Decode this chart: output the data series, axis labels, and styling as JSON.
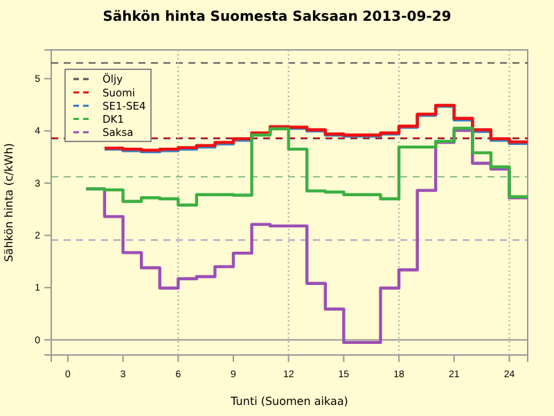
{
  "chart_data": {
    "type": "step",
    "title": "Sähkön hinta Suomesta Saksaan 2013-09-29",
    "xlabel": "Tunti (Suomen aikaa)",
    "ylabel": "Sähkön hinta (c/kWh)",
    "x": [
      1,
      2,
      3,
      4,
      5,
      6,
      7,
      8,
      9,
      10,
      11,
      12,
      13,
      14,
      15,
      16,
      17,
      18,
      19,
      20,
      21,
      22,
      23,
      24,
      25
    ],
    "xlim": [
      -0.9,
      25
    ],
    "ylim": [
      -0.29,
      5.55
    ],
    "xticks": [
      0,
      3,
      6,
      9,
      12,
      15,
      18,
      21,
      24
    ],
    "yticks": [
      0,
      1,
      2,
      3,
      4,
      5
    ],
    "series": [
      {
        "name": "SE1-SE4",
        "color": "#3a7ebf",
        "values": [
          null,
          3.65,
          3.62,
          3.6,
          3.62,
          3.65,
          3.69,
          3.75,
          3.82,
          3.94,
          4.06,
          4.05,
          4.0,
          3.92,
          3.9,
          3.9,
          3.94,
          4.07,
          4.3,
          4.47,
          4.21,
          3.99,
          3.82,
          3.76,
          3.76
        ]
      },
      {
        "name": "Suomi",
        "color": "#ee1111",
        "values": [
          null,
          3.67,
          3.65,
          3.63,
          3.65,
          3.68,
          3.72,
          3.78,
          3.85,
          3.96,
          4.08,
          4.07,
          4.02,
          3.94,
          3.92,
          3.92,
          3.96,
          4.09,
          4.32,
          4.49,
          4.24,
          4.02,
          3.85,
          3.79,
          3.79
        ]
      },
      {
        "name": "Saksa",
        "color": "#9b4fb5",
        "values": [
          2.89,
          2.36,
          1.67,
          1.38,
          0.99,
          1.17,
          1.21,
          1.4,
          1.66,
          2.21,
          2.18,
          2.18,
          1.08,
          0.59,
          -0.05,
          -0.05,
          0.99,
          1.34,
          2.86,
          3.78,
          4.01,
          3.38,
          3.27,
          2.72,
          2.72
        ]
      },
      {
        "name": "DK1",
        "color": "#3cb043",
        "values": [
          2.89,
          2.87,
          2.65,
          2.72,
          2.7,
          2.58,
          2.78,
          2.78,
          2.77,
          3.92,
          4.04,
          3.65,
          2.85,
          2.83,
          2.78,
          2.78,
          2.7,
          3.69,
          3.69,
          3.8,
          4.05,
          3.58,
          3.31,
          2.74,
          2.74
        ]
      }
    ],
    "ref_lines": [
      {
        "axis": "y",
        "value": 5.3,
        "label": "Öljy",
        "color": "#555555",
        "line_style": "dashed"
      },
      {
        "axis": "y",
        "value": 3.85,
        "label": null,
        "color": "#3a7ebf",
        "line_style": "dashed"
      },
      {
        "axis": "y",
        "value": 3.86,
        "label": null,
        "color": "#cc0000",
        "line_style": "dashed"
      },
      {
        "axis": "y",
        "value": 3.12,
        "label": null,
        "color": "#8cc08c",
        "line_style": "dashed"
      },
      {
        "axis": "y",
        "value": 1.91,
        "label": null,
        "color": "#b898c8",
        "line_style": "dashed"
      },
      {
        "axis": "y",
        "value": 0,
        "label": null,
        "color": "#999999",
        "line_style": "solid"
      },
      {
        "axis": "x",
        "value": 6,
        "label": null,
        "color": "#aaaaaa",
        "line_style": "dotted"
      },
      {
        "axis": "x",
        "value": 12,
        "label": null,
        "color": "#aaaaaa",
        "line_style": "dotted"
      },
      {
        "axis": "x",
        "value": 18,
        "label": null,
        "color": "#aaaaaa",
        "line_style": "dotted"
      },
      {
        "axis": "x",
        "value": 24,
        "label": null,
        "color": "#aaaaaa",
        "line_style": "dotted"
      }
    ],
    "legend": "top left",
    "line_style": "solid"
  }
}
